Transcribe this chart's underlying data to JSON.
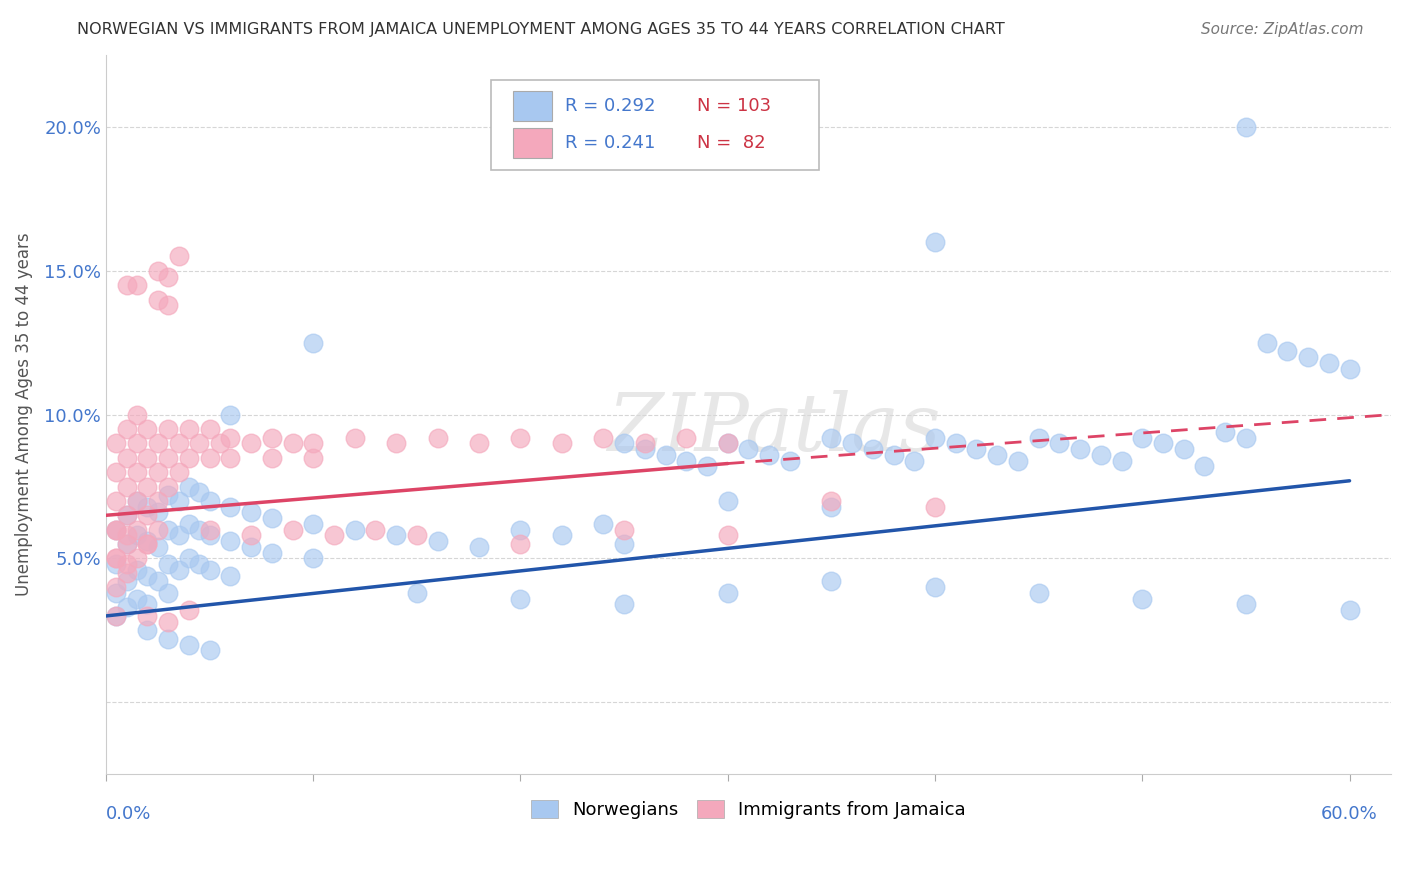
{
  "title": "NORWEGIAN VS IMMIGRANTS FROM JAMAICA UNEMPLOYMENT AMONG AGES 35 TO 44 YEARS CORRELATION CHART",
  "source": "Source: ZipAtlas.com",
  "ylabel": "Unemployment Among Ages 35 to 44 years",
  "xlim": [
    0.0,
    0.62
  ],
  "ylim": [
    -0.025,
    0.225
  ],
  "yticks": [
    0.0,
    0.05,
    0.1,
    0.15,
    0.2
  ],
  "ytick_labels": [
    "",
    "5.0%",
    "10.0%",
    "15.0%",
    "20.0%"
  ],
  "norwegians_color": "#a8c8f0",
  "jamaicans_color": "#f4a8bc",
  "norwegian_line_color": "#2255aa",
  "jamaican_line_color": "#dd4466",
  "title_color": "#333333",
  "source_color": "#777777",
  "axis_label_color": "#555555",
  "tick_color": "#4477cc",
  "R_norwegian": 0.292,
  "N_norwegian": 103,
  "R_jamaican": 0.241,
  "N_jamaican": 82,
  "norwegian_trendline_solid": [
    [
      0.0,
      0.03
    ],
    [
      0.6,
      0.077
    ]
  ],
  "jamaican_trendline_solid": [
    [
      0.0,
      0.065
    ],
    [
      0.3,
      0.083
    ]
  ],
  "jamaican_trendline_dashed": [
    [
      0.3,
      0.083
    ],
    [
      0.62,
      0.1
    ]
  ],
  "norwegian_scatter": [
    [
      0.005,
      0.06
    ],
    [
      0.005,
      0.048
    ],
    [
      0.005,
      0.038
    ],
    [
      0.005,
      0.03
    ],
    [
      0.01,
      0.065
    ],
    [
      0.01,
      0.055
    ],
    [
      0.01,
      0.042
    ],
    [
      0.01,
      0.033
    ],
    [
      0.015,
      0.07
    ],
    [
      0.015,
      0.058
    ],
    [
      0.015,
      0.046
    ],
    [
      0.015,
      0.036
    ],
    [
      0.02,
      0.068
    ],
    [
      0.02,
      0.056
    ],
    [
      0.02,
      0.044
    ],
    [
      0.02,
      0.034
    ],
    [
      0.025,
      0.066
    ],
    [
      0.025,
      0.054
    ],
    [
      0.025,
      0.042
    ],
    [
      0.03,
      0.072
    ],
    [
      0.03,
      0.06
    ],
    [
      0.03,
      0.048
    ],
    [
      0.03,
      0.038
    ],
    [
      0.035,
      0.07
    ],
    [
      0.035,
      0.058
    ],
    [
      0.035,
      0.046
    ],
    [
      0.04,
      0.075
    ],
    [
      0.04,
      0.062
    ],
    [
      0.04,
      0.05
    ],
    [
      0.045,
      0.073
    ],
    [
      0.045,
      0.06
    ],
    [
      0.045,
      0.048
    ],
    [
      0.05,
      0.07
    ],
    [
      0.05,
      0.058
    ],
    [
      0.05,
      0.046
    ],
    [
      0.06,
      0.068
    ],
    [
      0.06,
      0.056
    ],
    [
      0.06,
      0.044
    ],
    [
      0.07,
      0.066
    ],
    [
      0.07,
      0.054
    ],
    [
      0.08,
      0.064
    ],
    [
      0.08,
      0.052
    ],
    [
      0.1,
      0.062
    ],
    [
      0.1,
      0.05
    ],
    [
      0.12,
      0.06
    ],
    [
      0.14,
      0.058
    ],
    [
      0.16,
      0.056
    ],
    [
      0.18,
      0.054
    ],
    [
      0.2,
      0.06
    ],
    [
      0.22,
      0.058
    ],
    [
      0.24,
      0.062
    ],
    [
      0.25,
      0.09
    ],
    [
      0.26,
      0.088
    ],
    [
      0.27,
      0.086
    ],
    [
      0.28,
      0.084
    ],
    [
      0.29,
      0.082
    ],
    [
      0.3,
      0.09
    ],
    [
      0.31,
      0.088
    ],
    [
      0.32,
      0.086
    ],
    [
      0.33,
      0.084
    ],
    [
      0.35,
      0.092
    ],
    [
      0.36,
      0.09
    ],
    [
      0.37,
      0.088
    ],
    [
      0.38,
      0.086
    ],
    [
      0.39,
      0.084
    ],
    [
      0.4,
      0.092
    ],
    [
      0.41,
      0.09
    ],
    [
      0.42,
      0.088
    ],
    [
      0.43,
      0.086
    ],
    [
      0.44,
      0.084
    ],
    [
      0.45,
      0.092
    ],
    [
      0.46,
      0.09
    ],
    [
      0.47,
      0.088
    ],
    [
      0.48,
      0.086
    ],
    [
      0.49,
      0.084
    ],
    [
      0.5,
      0.092
    ],
    [
      0.51,
      0.09
    ],
    [
      0.52,
      0.088
    ],
    [
      0.53,
      0.082
    ],
    [
      0.54,
      0.094
    ],
    [
      0.55,
      0.092
    ],
    [
      0.56,
      0.125
    ],
    [
      0.57,
      0.122
    ],
    [
      0.58,
      0.12
    ],
    [
      0.59,
      0.118
    ],
    [
      0.6,
      0.116
    ],
    [
      0.55,
      0.2
    ],
    [
      0.4,
      0.16
    ],
    [
      0.1,
      0.125
    ],
    [
      0.06,
      0.1
    ],
    [
      0.15,
      0.038
    ],
    [
      0.2,
      0.036
    ],
    [
      0.25,
      0.034
    ],
    [
      0.3,
      0.038
    ],
    [
      0.35,
      0.042
    ],
    [
      0.4,
      0.04
    ],
    [
      0.45,
      0.038
    ],
    [
      0.5,
      0.036
    ],
    [
      0.55,
      0.034
    ],
    [
      0.6,
      0.032
    ],
    [
      0.02,
      0.025
    ],
    [
      0.03,
      0.022
    ],
    [
      0.04,
      0.02
    ],
    [
      0.05,
      0.018
    ],
    [
      0.25,
      0.055
    ],
    [
      0.3,
      0.07
    ],
    [
      0.35,
      0.068
    ]
  ],
  "jamaican_scatter": [
    [
      0.005,
      0.09
    ],
    [
      0.005,
      0.08
    ],
    [
      0.005,
      0.07
    ],
    [
      0.005,
      0.06
    ],
    [
      0.005,
      0.05
    ],
    [
      0.005,
      0.04
    ],
    [
      0.005,
      0.03
    ],
    [
      0.01,
      0.095
    ],
    [
      0.01,
      0.085
    ],
    [
      0.01,
      0.075
    ],
    [
      0.01,
      0.065
    ],
    [
      0.01,
      0.055
    ],
    [
      0.01,
      0.045
    ],
    [
      0.015,
      0.1
    ],
    [
      0.015,
      0.09
    ],
    [
      0.015,
      0.08
    ],
    [
      0.015,
      0.07
    ],
    [
      0.015,
      0.06
    ],
    [
      0.015,
      0.05
    ],
    [
      0.02,
      0.095
    ],
    [
      0.02,
      0.085
    ],
    [
      0.02,
      0.075
    ],
    [
      0.02,
      0.065
    ],
    [
      0.02,
      0.055
    ],
    [
      0.025,
      0.09
    ],
    [
      0.025,
      0.08
    ],
    [
      0.025,
      0.07
    ],
    [
      0.025,
      0.06
    ],
    [
      0.03,
      0.095
    ],
    [
      0.03,
      0.085
    ],
    [
      0.03,
      0.075
    ],
    [
      0.035,
      0.09
    ],
    [
      0.035,
      0.08
    ],
    [
      0.04,
      0.095
    ],
    [
      0.04,
      0.085
    ],
    [
      0.045,
      0.09
    ],
    [
      0.05,
      0.085
    ],
    [
      0.055,
      0.09
    ],
    [
      0.06,
      0.085
    ],
    [
      0.07,
      0.09
    ],
    [
      0.08,
      0.085
    ],
    [
      0.09,
      0.09
    ],
    [
      0.1,
      0.085
    ],
    [
      0.025,
      0.15
    ],
    [
      0.025,
      0.14
    ],
    [
      0.03,
      0.148
    ],
    [
      0.03,
      0.138
    ],
    [
      0.035,
      0.155
    ],
    [
      0.01,
      0.145
    ],
    [
      0.015,
      0.145
    ],
    [
      0.05,
      0.095
    ],
    [
      0.06,
      0.092
    ],
    [
      0.08,
      0.092
    ],
    [
      0.1,
      0.09
    ],
    [
      0.12,
      0.092
    ],
    [
      0.14,
      0.09
    ],
    [
      0.16,
      0.092
    ],
    [
      0.18,
      0.09
    ],
    [
      0.2,
      0.092
    ],
    [
      0.22,
      0.09
    ],
    [
      0.24,
      0.092
    ],
    [
      0.26,
      0.09
    ],
    [
      0.28,
      0.092
    ],
    [
      0.3,
      0.09
    ],
    [
      0.005,
      0.06
    ],
    [
      0.005,
      0.05
    ],
    [
      0.01,
      0.058
    ],
    [
      0.01,
      0.048
    ],
    [
      0.02,
      0.055
    ],
    [
      0.05,
      0.06
    ],
    [
      0.07,
      0.058
    ],
    [
      0.09,
      0.06
    ],
    [
      0.11,
      0.058
    ],
    [
      0.13,
      0.06
    ],
    [
      0.15,
      0.058
    ],
    [
      0.2,
      0.055
    ],
    [
      0.25,
      0.06
    ],
    [
      0.3,
      0.058
    ],
    [
      0.35,
      0.07
    ],
    [
      0.4,
      0.068
    ],
    [
      0.02,
      0.03
    ],
    [
      0.03,
      0.028
    ],
    [
      0.04,
      0.032
    ]
  ]
}
